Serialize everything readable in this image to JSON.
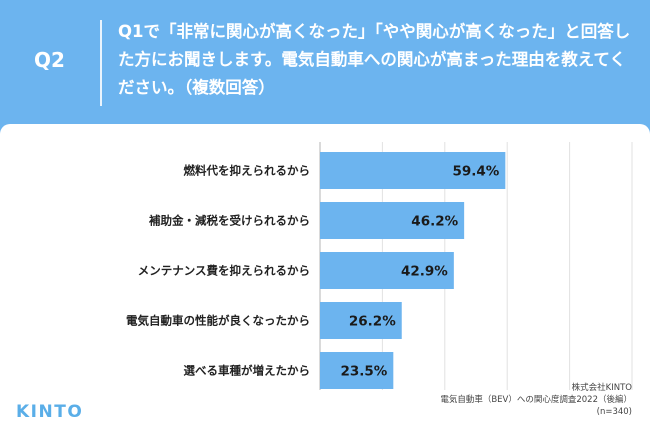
{
  "header": {
    "label": "Q2",
    "question": "Q1で「非常に関心が高くなった」「やや関心が高くなった」と回答した方にお聞きします。電気自動車への関心が高まった理由を教えてください。（複数回答）"
  },
  "chart_data": {
    "type": "bar",
    "orientation": "horizontal",
    "categories": [
      "燃料代を抑えられるから",
      "補助金・減税を受けられるから",
      "メンテナンス費を抑えられるから",
      "電気自動車の性能が良くなったから",
      "選べる車種が増えたから"
    ],
    "values": [
      59.4,
      46.2,
      42.9,
      26.2,
      23.5
    ],
    "labels": [
      "59.4%",
      "46.2%",
      "42.9%",
      "26.2%",
      "23.5%"
    ],
    "unit": "%",
    "xlim": [
      0,
      100
    ],
    "grid": true,
    "bar_color": "#6cb4ef"
  },
  "footer": {
    "company": "株式会社KINTO",
    "survey": "電気自動車（BEV）への関心度調査2022（後編）",
    "n": "(n=340)"
  },
  "brand": {
    "logo": "KINTO",
    "accent": "#6cb4ef",
    "logo_color": "#5aaee8"
  }
}
